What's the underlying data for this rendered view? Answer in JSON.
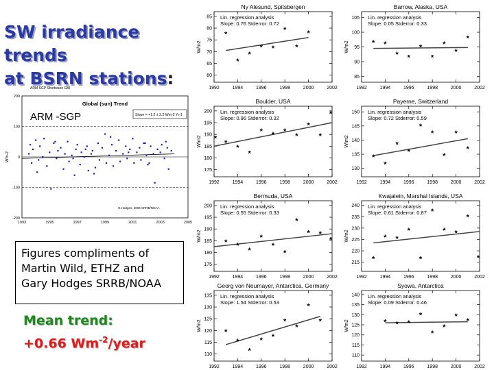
{
  "title": {
    "line1": "SW irradiance trends",
    "line2": "at BSRN stations",
    "colon": ":"
  },
  "credit": {
    "line1": "Figures compliments of",
    "line2": "Martin Wild, ETHZ and",
    "line3": "Gary Hodges  SRRB/NOAA"
  },
  "mean_trend": {
    "label": "Mean trend:",
    "value_prefix": "+0.66 Wm",
    "exponent": "-2",
    "value_suffix": "/year"
  },
  "chart_data": [
    {
      "type": "scatter",
      "header": "ARM SGP  Shortwave GBI",
      "title": "Global (sun) Trend",
      "site_label": "ARM -SGP",
      "legend": "Slope = +1.2 ± 2.2 Wm-2 Yr-1",
      "note": "G.Hodges, 2004  SRRB/NOAA",
      "ylabel": "Wm-2",
      "xlim": [
        1993,
        2005
      ],
      "ylim": [
        -200,
        200
      ],
      "x_ticks": [
        1993,
        1995,
        1997,
        1999,
        2001,
        2003,
        2005
      ],
      "y_ticks": [
        -200,
        -100,
        0,
        100,
        200
      ],
      "y_tick_labels": [
        "-200",
        "-100",
        "0",
        "100",
        "200"
      ],
      "dashed_lines": [
        100,
        -100
      ],
      "trend": [
        [
          1993,
          -5
        ],
        [
          2004,
          10
        ]
      ],
      "x": [
        1993.5,
        1993.6,
        1993.7,
        1993.8,
        1994.0,
        1994.2,
        1994.3,
        1994.5,
        1994.6,
        1994.8,
        1995.0,
        1995.1,
        1995.3,
        1995.5,
        1995.6,
        1995.8,
        1996.0,
        1996.1,
        1996.3,
        1996.4,
        1996.6,
        1996.8,
        1996.9,
        1997.0,
        1997.2,
        1997.3,
        1997.5,
        1997.7,
        1997.8,
        1998.0,
        1998.1,
        1998.3,
        1998.5,
        1998.6,
        1998.8,
        1999.0,
        1999.1,
        1999.3,
        1999.5,
        1999.6,
        1999.8,
        2000.0,
        2000.1,
        2000.3,
        2000.5,
        2000.6,
        2000.8,
        2001.0,
        2001.1,
        2001.3,
        2001.5,
        2001.6,
        2001.8,
        2002.0,
        2002.1,
        2002.3,
        2002.5,
        2002.6,
        2002.8,
        2003.0,
        2003.1,
        2003.3,
        2003.5,
        2003.6,
        2003.8,
        1994.1,
        1995.4,
        1996.7,
        1998.2,
        1999.4,
        2000.7,
        2002.2,
        2003.4,
        1997.6,
        2001.9
      ],
      "y": [
        10,
        40,
        -20,
        25,
        55,
        -10,
        35,
        0,
        60,
        -30,
        15,
        -105,
        45,
        -5,
        20,
        30,
        -40,
        10,
        50,
        -15,
        5,
        -60,
        25,
        40,
        -25,
        15,
        0,
        35,
        -45,
        10,
        20,
        -35,
        45,
        -10,
        30,
        75,
        -20,
        5,
        40,
        -30,
        20,
        55,
        -15,
        10,
        35,
        -5,
        25,
        60,
        -20,
        15,
        30,
        -10,
        45,
        5,
        -25,
        35,
        10,
        -85,
        25,
        15,
        40,
        -5,
        30,
        -40,
        20,
        -50,
        50,
        -5,
        -55,
        65,
        15,
        -20,
        50,
        25,
        45
      ]
    },
    {
      "type": "scatter",
      "title": "Ny Alesund, Spitsbergen",
      "annotation_title": "Lin. regression analysis",
      "annotation_stats": "Slope: 0.76  Stderror: 0.72",
      "ylabel": "W/m2",
      "xlim": [
        1992,
        2002
      ],
      "ylim": [
        57,
        87
      ],
      "y_ticks": [
        60,
        65,
        70,
        75,
        80,
        85
      ],
      "x": [
        1993,
        1994,
        1995,
        1996,
        1997,
        1998,
        1999,
        2000
      ],
      "y": [
        77.5,
        66,
        69,
        72,
        71.5,
        79.5,
        72,
        78
      ],
      "trend": [
        [
          1993,
          70.5
        ],
        [
          2000,
          76
        ]
      ]
    },
    {
      "type": "scatter",
      "title": "Barrow, Alaska, USA",
      "annotation_title": "Lin. regression analysis",
      "annotation_stats": "Slope: 0.05  Stderror: 0.33",
      "ylabel": "W/m2",
      "xlim": [
        1992,
        2002
      ],
      "ylim": [
        83,
        107
      ],
      "y_ticks": [
        85,
        90,
        95,
        100,
        105
      ],
      "x": [
        1993,
        1994,
        1995,
        1996,
        1997,
        1998,
        1999,
        2000,
        2001
      ],
      "y": [
        96.5,
        96,
        92.5,
        91.5,
        95,
        91.5,
        96,
        93.5,
        98
      ],
      "trend": [
        [
          1993,
          94.5
        ],
        [
          2001,
          94.8
        ]
      ]
    },
    {
      "type": "scatter",
      "title": "Boulder, USA",
      "annotation_title": "Lin. regression analysis",
      "annotation_stats": "Slope: 0.96  Stderror: 0.32",
      "ylabel": "W/m2",
      "xlim": [
        1992,
        2002
      ],
      "ylim": [
        172,
        202
      ],
      "y_ticks": [
        175,
        180,
        185,
        190,
        195,
        200
      ],
      "x": [
        1992,
        1993,
        1994,
        1995,
        1996,
        1997,
        1998,
        1999,
        2000,
        2001,
        2002
      ],
      "y": [
        188.5,
        186.5,
        184.5,
        182,
        191.5,
        190,
        191.5,
        189.5,
        194,
        189.5,
        199
      ],
      "trend": [
        [
          1992,
          185
        ],
        [
          2002,
          195
        ]
      ]
    },
    {
      "type": "scatter",
      "title": "Payerne, Switzerland",
      "annotation_title": "Lin. regression analysis",
      "annotation_stats": "Slope: 0.72  Stderror: 0.59",
      "ylabel": "W/m2",
      "xlim": [
        1992,
        2002
      ],
      "ylim": [
        127,
        152
      ],
      "y_ticks": [
        130,
        135,
        140,
        145,
        150
      ],
      "x": [
        1993,
        1994,
        1995,
        1996,
        1997,
        1998,
        1999,
        2000,
        2001
      ],
      "y": [
        134,
        131.5,
        138.5,
        136,
        145,
        142.5,
        134.5,
        142.5,
        137
      ],
      "trend": [
        [
          1993,
          134.5
        ],
        [
          2001,
          140.5
        ]
      ]
    },
    {
      "type": "scatter",
      "title": "Bermuda, USA",
      "annotation_title": "Lin. regression analysis",
      "annotation_stats": "Slope: 0.55  Stderror: 0.33",
      "ylabel": "W/m2",
      "xlim": [
        1992,
        2002
      ],
      "ylim": [
        172,
        202
      ],
      "y_ticks": [
        175,
        180,
        185,
        190,
        195,
        200
      ],
      "x": [
        1993,
        1994,
        1995,
        1996,
        1997,
        1998,
        1999,
        2000,
        2001,
        2002
      ],
      "y": [
        184.5,
        183,
        181,
        186.5,
        183,
        180,
        193.5,
        188.5,
        188,
        185.5
      ],
      "trend": [
        [
          1992,
          182.5
        ],
        [
          2002,
          188
        ]
      ]
    },
    {
      "type": "scatter",
      "title": "Kwajalein, Marshal Islands, USA",
      "annotation_title": "Lin. regression analysis",
      "annotation_stats": "Slope: 0.61  Stderror: 0.87",
      "ylabel": "W/m2",
      "xlim": [
        1992,
        2002
      ],
      "ylim": [
        211,
        242
      ],
      "y_ticks": [
        215,
        220,
        225,
        230,
        235,
        240
      ],
      "x": [
        1993,
        1994,
        1995,
        1996,
        1997,
        1998,
        1999,
        2000,
        2001,
        2002
      ],
      "y": [
        216.5,
        226,
        225.5,
        229,
        216.5,
        237.5,
        229,
        228,
        235,
        217
      ],
      "trend": [
        [
          1993,
          223.5
        ],
        [
          2002,
          228.5
        ]
      ]
    },
    {
      "type": "scatter",
      "title": "Georg von Neumayer, Antarctica, Germany",
      "annotation_title": "Lin. regression analysis",
      "annotation_stats": "Slope: 1.54  Stderror: 0.53",
      "ylabel": "W/m2",
      "xlim": [
        1992,
        2002
      ],
      "ylim": [
        107,
        137
      ],
      "y_ticks": [
        110,
        115,
        120,
        125,
        130,
        135
      ],
      "x": [
        1993,
        1994,
        1995,
        1996,
        1997,
        1998,
        1999,
        2000,
        2001
      ],
      "y": [
        119.5,
        115.5,
        111.5,
        116,
        117.5,
        124,
        121.5,
        130.5,
        124
      ],
      "trend": [
        [
          1993,
          114
        ],
        [
          2001,
          126
        ]
      ]
    },
    {
      "type": "scatter",
      "title": "Syowa, Antarctica",
      "annotation_title": "Lin. regression analysis",
      "annotation_stats": "Slope: 0.09  Stderror: 0.46",
      "ylabel": "W/m2",
      "xlim": [
        1992,
        2002
      ],
      "ylim": [
        107,
        142
      ],
      "y_ticks": [
        110,
        115,
        120,
        125,
        130,
        135,
        140
      ],
      "x": [
        1994,
        1995,
        1996,
        1997,
        1998,
        1999,
        2000,
        2001
      ],
      "y": [
        126.5,
        125.5,
        126,
        130,
        121,
        124,
        129.5,
        127
      ],
      "trend": [
        [
          1994,
          126
        ],
        [
          2001,
          126.5
        ]
      ]
    }
  ]
}
